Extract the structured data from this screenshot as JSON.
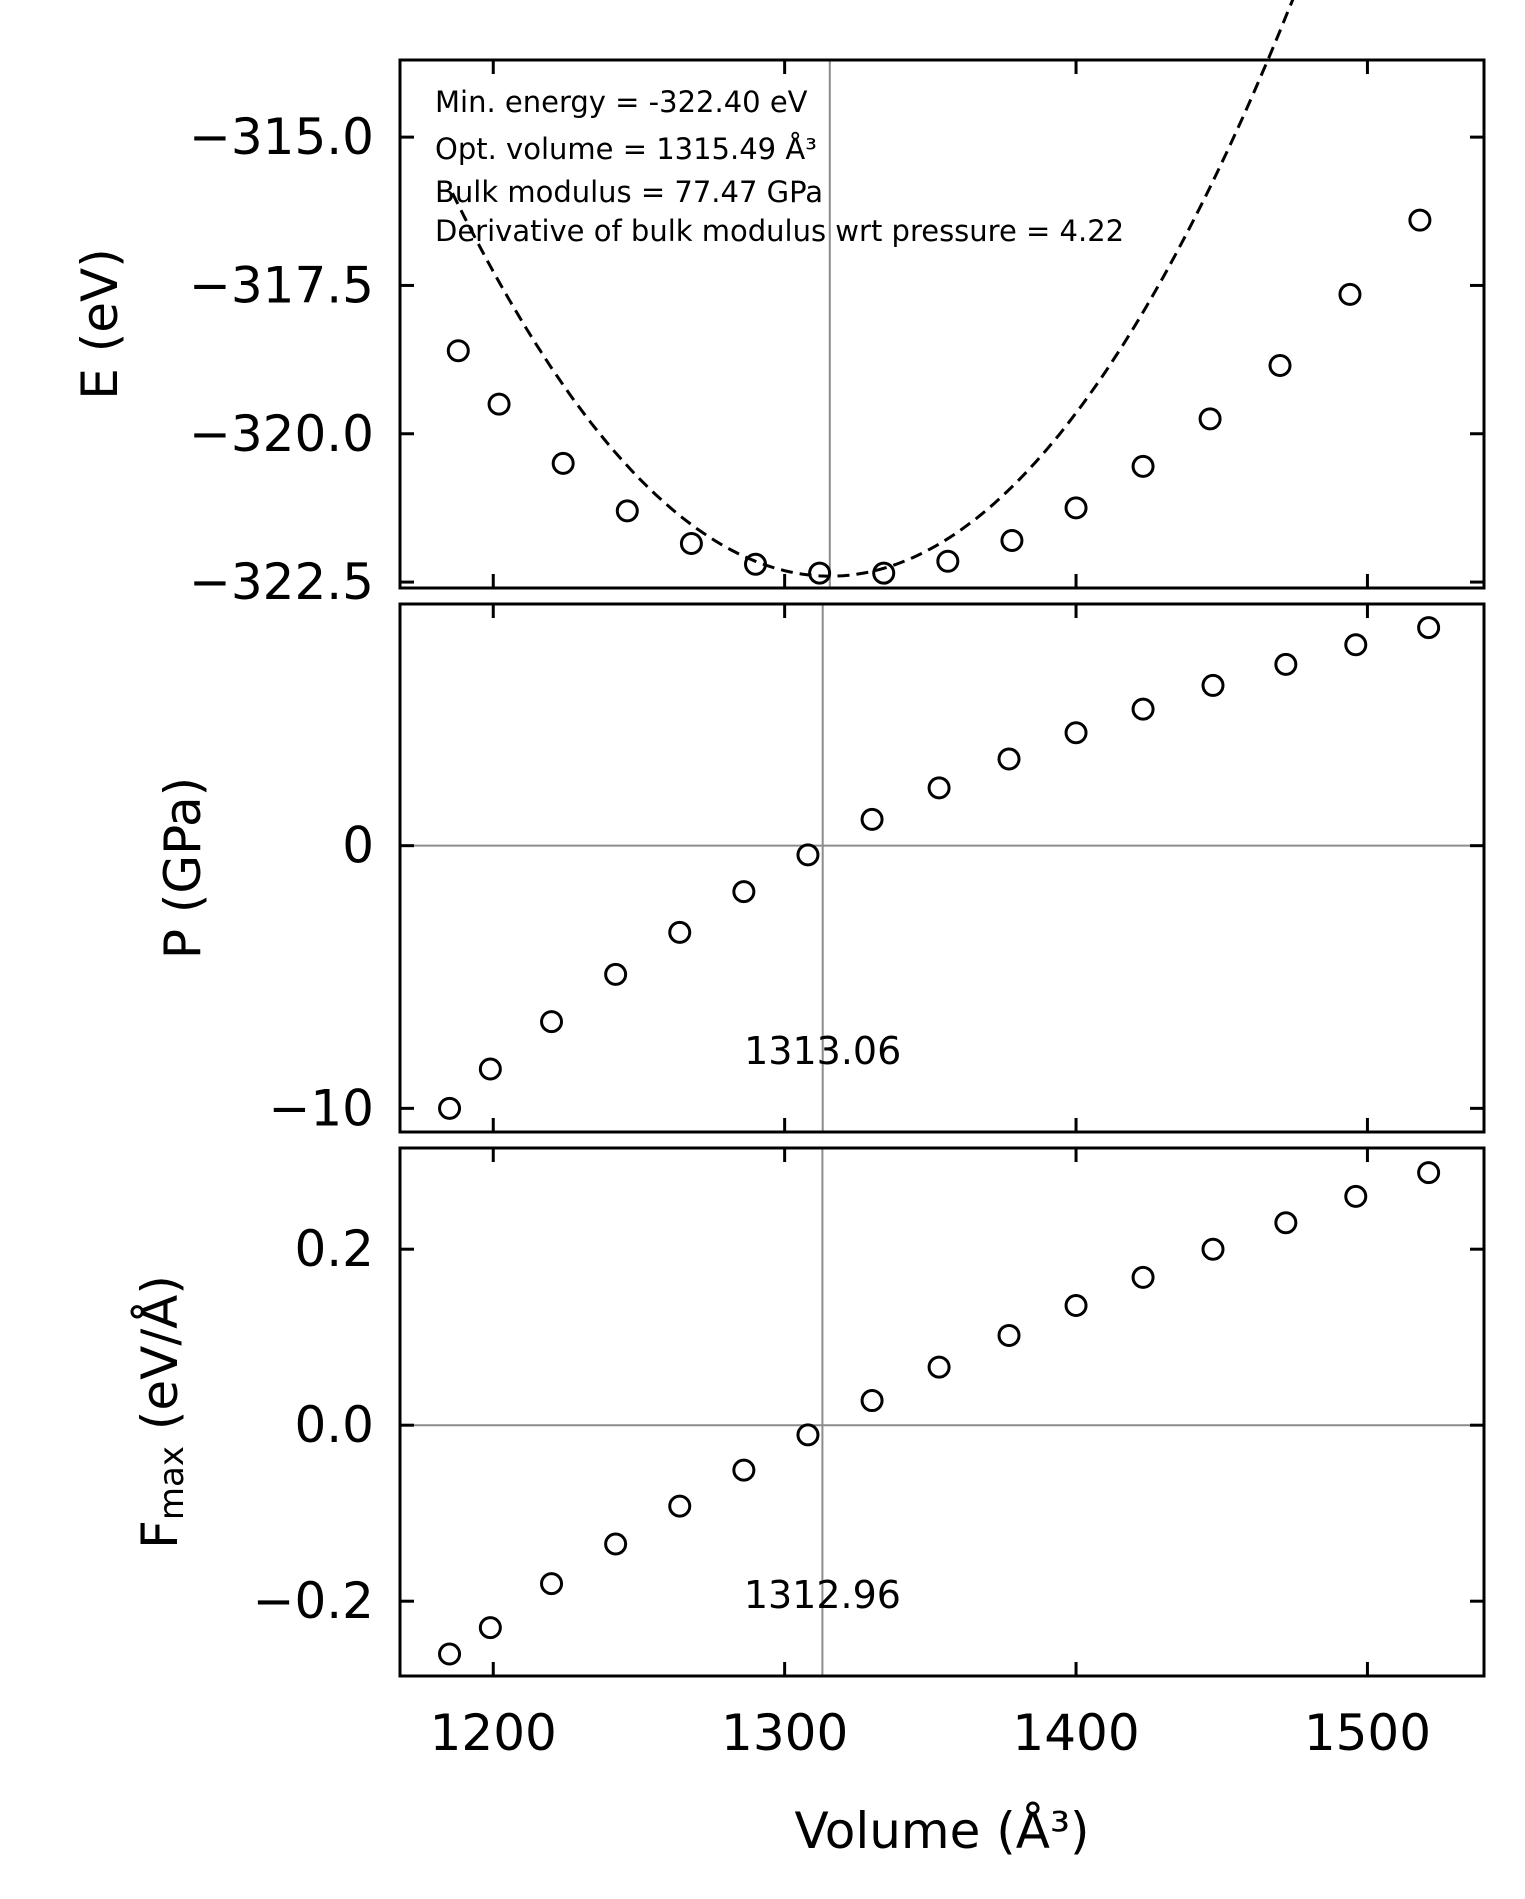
{
  "chart_data": [
    {
      "type": "scatter",
      "panel": "energy",
      "ylabel": "E (eV)",
      "xlabel": "",
      "xlim": [
        1168,
        1540
      ],
      "ylim": [
        -322.6,
        -313.7
      ],
      "xticks": [
        1200,
        1300,
        1400,
        1500
      ],
      "show_xtick_labels": false,
      "yticks": [
        {
          "value": -315.0,
          "label": "−315.0"
        },
        {
          "value": -317.5,
          "label": "−317.5"
        },
        {
          "value": -320.0,
          "label": "−320.0"
        },
        {
          "value": -322.5,
          "label": "−322.5"
        }
      ],
      "grid": false,
      "vline": {
        "x": 1315.49,
        "label": ""
      },
      "hline": null,
      "annotation_lines": [
        "Min. energy = -322.40 eV",
        "Opt. volume = 1315.49 Å³",
        "Bulk modulus = 77.47 GPa",
        "Derivative of bulk modulus wrt pressure = 4.22"
      ],
      "fit": {
        "style": "dashed",
        "e0": -322.4,
        "v0": 1315.49,
        "k": 0.000385,
        "x_range": [
          1186,
          1518
        ]
      },
      "series": [
        {
          "name": "E",
          "x": [
            1188,
            1202,
            1224,
            1246,
            1268,
            1290,
            1312,
            1334,
            1356,
            1378,
            1400,
            1423,
            1446,
            1470,
            1494,
            1518
          ],
          "y": [
            -318.6,
            -319.5,
            -320.5,
            -321.3,
            -321.85,
            -322.2,
            -322.35,
            -322.35,
            -322.15,
            -321.8,
            -321.25,
            -320.55,
            -319.75,
            -318.85,
            -317.65,
            -316.4
          ]
        }
      ]
    },
    {
      "type": "scatter",
      "panel": "pressure",
      "ylabel": "P (GPa)",
      "xlabel": "",
      "xlim": [
        1168,
        1540
      ],
      "ylim": [
        -10.9,
        9.2
      ],
      "xticks": [
        1200,
        1300,
        1400,
        1500
      ],
      "show_xtick_labels": false,
      "yticks": [
        {
          "value": 0,
          "label": "0"
        },
        {
          "value": -10,
          "label": "−10"
        }
      ],
      "grid": false,
      "vline": {
        "x": 1313.06,
        "label": "1313.06"
      },
      "hline": 0,
      "series": [
        {
          "name": "P",
          "x": [
            1185,
            1199,
            1220,
            1242,
            1264,
            1286,
            1308,
            1330,
            1353,
            1377,
            1400,
            1423,
            1447,
            1472,
            1496,
            1521
          ],
          "y": [
            -10.0,
            -8.5,
            -6.7,
            -4.9,
            -3.3,
            -1.75,
            -0.35,
            1.0,
            2.2,
            3.3,
            4.3,
            5.2,
            6.1,
            6.9,
            7.65,
            8.3
          ]
        }
      ]
    },
    {
      "type": "scatter",
      "panel": "force",
      "ylabel": "F",
      "ylabel_sub": "max",
      "ylabel_unit": "(eV/Å)",
      "xlabel": "Volume (Å³)",
      "xlim": [
        1168,
        1540
      ],
      "ylim": [
        -0.285,
        0.315
      ],
      "xticks": [
        1200,
        1300,
        1400,
        1500
      ],
      "show_xtick_labels": true,
      "xtick_labels": [
        "1200",
        "1300",
        "1400",
        "1500"
      ],
      "yticks": [
        {
          "value": 0.2,
          "label": "0.2"
        },
        {
          "value": 0.0,
          "label": "0.0"
        },
        {
          "value": -0.2,
          "label": "−0.2"
        }
      ],
      "grid": false,
      "vline": {
        "x": 1312.96,
        "label": "1312.96"
      },
      "hline": 0,
      "series": [
        {
          "name": "Fmax",
          "x": [
            1185,
            1199,
            1220,
            1242,
            1264,
            1286,
            1308,
            1330,
            1353,
            1377,
            1400,
            1423,
            1447,
            1472,
            1496,
            1521
          ],
          "y": [
            -0.26,
            -0.23,
            -0.18,
            -0.135,
            -0.092,
            -0.051,
            -0.011,
            0.028,
            0.066,
            0.102,
            0.136,
            0.168,
            0.2,
            0.23,
            0.26,
            0.287
          ]
        }
      ]
    }
  ]
}
